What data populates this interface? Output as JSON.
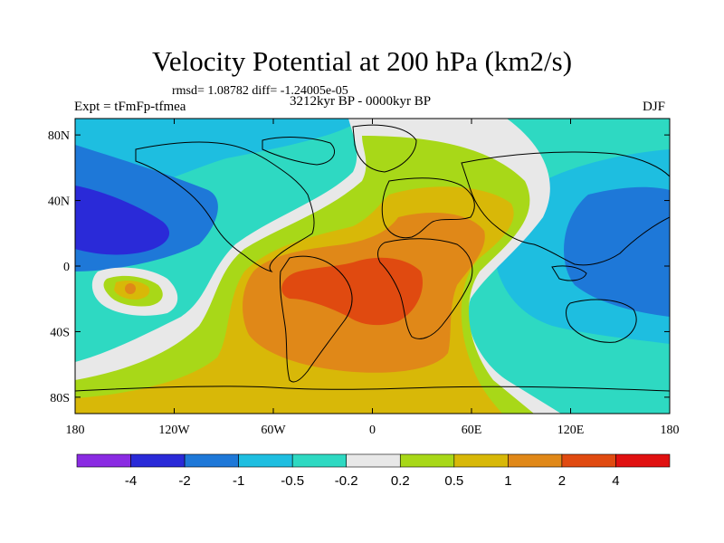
{
  "title": "Velocity Potential at 200 hPa (km2/s)",
  "stats": "rmsd= 1.08782 diff= -1.24005e-05",
  "period": "3212kyr BP - 0000kyr BP",
  "experiment": "Expt = tFmFp-tfmea",
  "season": "DJF",
  "map": {
    "projection": "cylindrical equidistant",
    "lon_range": [
      -180,
      180
    ],
    "lat_range": [
      -90,
      90
    ],
    "x_ticks": [
      "180",
      "120W",
      "60W",
      "0",
      "60E",
      "120E",
      "180"
    ],
    "y_ticks": [
      "80N",
      "40N",
      "0",
      "40S",
      "80S"
    ],
    "continents": "coastline outlines",
    "field_features": [
      {
        "region": "South America / South Atlantic / Africa",
        "level": "1 to 4",
        "description": "broad positive maximum"
      },
      {
        "region": "Western Pacific / Maritime Continent",
        "level": "-1 to -0.5",
        "description": "negative anomaly"
      },
      {
        "region": "Eastern North Pacific",
        "level": "-2 to -4",
        "description": "negative minimum"
      },
      {
        "region": "Southeast Pacific near 15S 140W",
        "level": "0.5 to 1",
        "description": "local positive maximum"
      }
    ]
  },
  "colorbar": {
    "labels": [
      "-4",
      "-2",
      "-1",
      "-0.5",
      "-0.2",
      "0.2",
      "0.5",
      "1",
      "2",
      "4"
    ],
    "colors": [
      "#8a2be2",
      "#2a2ad8",
      "#1e78d8",
      "#1ebee0",
      "#2ed9c2",
      "#e8e8e8",
      "#a8d818",
      "#d8b808",
      "#e08818",
      "#e04a10",
      "#e01010"
    ]
  }
}
